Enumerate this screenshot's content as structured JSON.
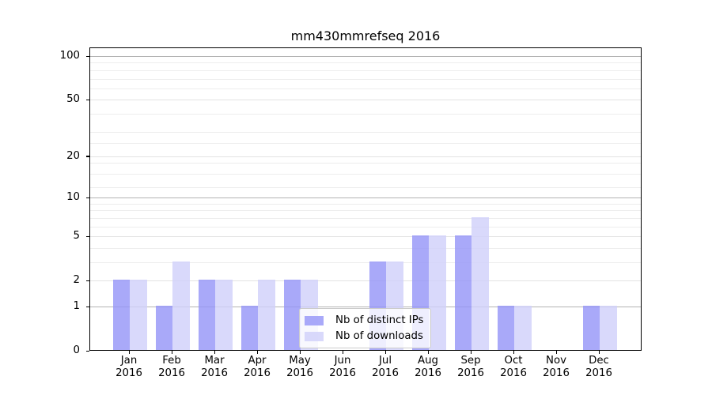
{
  "chart_data": {
    "type": "bar",
    "title": "mm430mmrefseq 2016",
    "scale": "log1p",
    "grid": true,
    "categories": [
      "Jan",
      "Feb",
      "Mar",
      "Apr",
      "May",
      "Jun",
      "Jul",
      "Aug",
      "Sep",
      "Oct",
      "Nov",
      "Dec"
    ],
    "category_year": "2016",
    "series": [
      {
        "name": "Nb of distinct IPs",
        "color": "rgba(148,148,248,0.8)",
        "values": [
          2,
          1,
          2,
          1,
          2,
          0,
          3,
          5,
          5,
          1,
          0,
          1
        ]
      },
      {
        "name": "Nb of downloads",
        "color": "rgba(208,208,250,0.8)",
        "values": [
          2,
          3,
          2,
          2,
          2,
          0,
          3,
          5,
          7,
          1,
          0,
          1
        ]
      }
    ],
    "y_axis": {
      "ticks": [
        0,
        1,
        2,
        5,
        10,
        20,
        50,
        100
      ],
      "major_gridlines": [
        1,
        10,
        100
      ],
      "labeled_gridlines": [
        2,
        5,
        20,
        50
      ],
      "minor_gridlines": [
        3,
        4,
        6,
        7,
        8,
        9,
        12,
        15,
        18,
        25,
        30,
        40,
        60,
        70,
        80,
        90
      ],
      "anchor_max": 100,
      "ylim_bottom": 0
    },
    "legend_position": "lower center",
    "colors": {
      "grid_major": "#b3b3b3",
      "grid_labeled": "#e3e3e3",
      "grid_minor": "#ededed",
      "axis": "#000000",
      "text": "#000000"
    }
  }
}
